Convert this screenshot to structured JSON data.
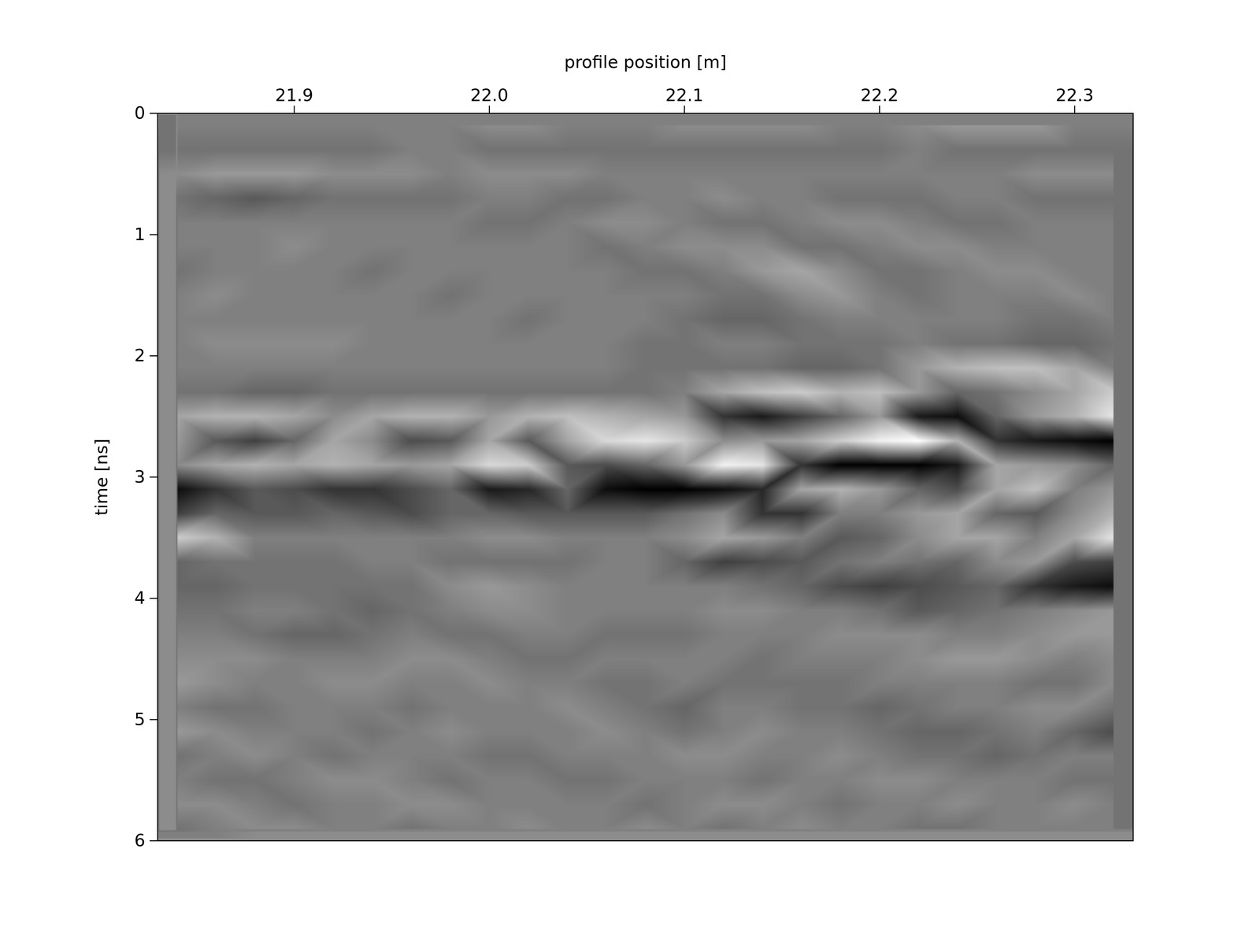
{
  "chart_data": {
    "type": "heatmap",
    "xlabel": "profile position [m]",
    "ylabel": "time [ns]",
    "xlim": [
      21.83,
      22.33
    ],
    "ylim": [
      0,
      6
    ],
    "xticks": [
      21.9,
      {
        "value": 22,
        "label": "22.0"
      },
      22.1,
      22.2,
      22.3
    ],
    "yticks": [
      0,
      1,
      2,
      3,
      4,
      5,
      6
    ],
    "colors": [
      "#000000",
      "#ffffff"
    ],
    "clim": [
      -1,
      1
    ],
    "x": [
      21.84,
      21.86,
      21.88,
      21.9,
      21.92,
      21.94,
      21.96,
      21.98,
      22.0,
      22.02,
      22.04,
      22.06,
      22.08,
      22.1,
      22.12,
      22.14,
      22.16,
      22.18,
      22.2,
      22.22,
      22.24,
      22.26,
      22.28,
      22.3,
      22.32
    ],
    "y": [
      0.1,
      0.3,
      0.5,
      0.7,
      0.9,
      1.1,
      1.3,
      1.5,
      1.7,
      1.9,
      2.1,
      2.3,
      2.5,
      2.7,
      2.9,
      3.1,
      3.3,
      3.5,
      3.7,
      3.9,
      4.1,
      4.3,
      4.5,
      4.7,
      4.9,
      5.1,
      5.3,
      5.5,
      5.7,
      5.9
    ],
    "cells": [
      [
        0,
        0,
        0,
        0,
        0,
        0,
        0,
        0,
        0.1,
        0.1,
        0,
        0,
        0,
        0.1,
        0.1,
        0.1,
        0.1,
        0,
        0,
        0.1,
        0.2,
        0.2,
        0.2,
        0,
        0
      ],
      [
        -0.1,
        -0.1,
        -0.1,
        -0.1,
        -0.1,
        -0.1,
        0,
        0,
        -0.1,
        -0.1,
        -0.1,
        -0.1,
        -0.1,
        -0.1,
        -0.1,
        -0.1,
        -0.1,
        -0.1,
        -0.1,
        0,
        -0.1,
        -0.1,
        -0.1,
        -0.1,
        -0.1
      ],
      [
        0.1,
        0.2,
        0.2,
        0.2,
        0.1,
        0.1,
        0.1,
        0,
        0.1,
        0.1,
        0.1,
        0,
        0,
        0,
        0,
        0,
        0,
        0,
        0,
        0,
        0,
        0,
        0.1,
        0.1,
        0.1
      ],
      [
        -0.1,
        -0.2,
        -0.3,
        -0.2,
        -0.1,
        -0.1,
        -0.1,
        -0.1,
        0,
        0,
        -0.1,
        -0.1,
        0,
        0,
        0.1,
        0,
        0,
        -0.1,
        -0.1,
        -0.1,
        0,
        0,
        -0.1,
        -0.1,
        -0.1
      ],
      [
        0,
        0,
        0,
        0,
        0,
        0,
        0,
        0,
        -0.1,
        -0.1,
        0,
        0.1,
        0.1,
        0,
        -0.1,
        -0.1,
        0,
        0.1,
        0.1,
        0,
        -0.1,
        -0.1,
        0,
        0,
        0
      ],
      [
        0,
        0,
        0,
        0.1,
        0,
        0,
        0,
        0,
        0,
        0,
        0,
        -0.1,
        0,
        0.1,
        0.1,
        0.1,
        -0.1,
        -0.1,
        0,
        0.1,
        0.1,
        0,
        0,
        0,
        0
      ],
      [
        -0.1,
        0,
        0,
        0,
        0,
        -0.1,
        0,
        0,
        0,
        0,
        0,
        0,
        -0.1,
        -0.1,
        0,
        0.2,
        0.3,
        0.1,
        -0.1,
        -0.1,
        0,
        0.1,
        0.1,
        0,
        0
      ],
      [
        0,
        0.1,
        0,
        0,
        0,
        0,
        0,
        -0.1,
        0,
        0,
        0,
        0,
        0,
        0,
        -0.1,
        -0.1,
        0.1,
        0.2,
        0,
        -0.1,
        0,
        0,
        0,
        0.1,
        0
      ],
      [
        0,
        0,
        0,
        0,
        0,
        0,
        0,
        0,
        0,
        -0.1,
        0,
        0,
        0,
        -0.1,
        -0.2,
        -0.2,
        -0.1,
        0,
        0,
        0,
        0,
        0,
        -0.1,
        -0.1,
        0
      ],
      [
        0,
        0.1,
        0.1,
        0.1,
        0.1,
        0,
        0,
        0,
        0,
        0,
        0,
        0,
        -0.1,
        -0.1,
        0,
        0,
        -0.1,
        -0.1,
        -0.1,
        0,
        -0.1,
        -0.1,
        -0.2,
        -0.2,
        -0.1
      ],
      [
        0,
        0,
        0,
        0,
        0,
        0,
        0,
        0,
        0,
        0,
        0,
        0,
        -0.1,
        -0.1,
        -0.1,
        -0.1,
        -0.2,
        -0.2,
        -0.1,
        0.2,
        0.4,
        0.5,
        0.5,
        0.3,
        0
      ],
      [
        -0.1,
        -0.1,
        -0.2,
        -0.2,
        -0.1,
        -0.1,
        -0.1,
        -0.1,
        -0.1,
        -0.1,
        -0.1,
        -0.1,
        -0.1,
        0,
        0.3,
        0.5,
        0.6,
        0.4,
        0.5,
        0.2,
        -0.2,
        -0.1,
        0.1,
        0.3,
        0.6
      ],
      [
        0.3,
        0.4,
        0.4,
        0.3,
        0.1,
        0.3,
        0.4,
        0.4,
        0.2,
        0.4,
        0.5,
        0.4,
        0.3,
        0.2,
        -0.6,
        -0.8,
        -0.5,
        -0.2,
        0.2,
        -0.8,
        -0.9,
        -0.2,
        0.2,
        0.4,
        0.8
      ],
      [
        0.2,
        -0.3,
        -0.5,
        -0.2,
        0.3,
        0.1,
        -0.4,
        -0.3,
        0.3,
        -0.3,
        0.3,
        0.7,
        0.8,
        0.6,
        0.1,
        0.2,
        0.3,
        0.6,
        0.9,
        1.0,
        0.4,
        -0.6,
        -0.8,
        -0.9,
        -1.0
      ],
      [
        0.1,
        0.3,
        0.4,
        0.3,
        0.4,
        0.3,
        0.2,
        0.3,
        0.7,
        0.6,
        -0.3,
        -0.4,
        -0.2,
        0.2,
        0.9,
        0.8,
        -0.6,
        -1.0,
        -1.0,
        -1.0,
        -0.8,
        0.3,
        0.2,
        0.1,
        -0.2
      ],
      [
        -0.9,
        -0.6,
        -0.3,
        -0.4,
        -0.6,
        -0.6,
        -0.4,
        -0.2,
        -0.8,
        -0.7,
        -0.2,
        -0.9,
        -1.0,
        -1.0,
        -0.9,
        -0.7,
        0.3,
        0.4,
        0.2,
        -0.2,
        -0.4,
        0.3,
        0.5,
        0,
        0.2
      ],
      [
        -0.5,
        -0.2,
        -0.3,
        -0.3,
        -0.2,
        -0.3,
        -0.4,
        -0.2,
        -0.2,
        -0.3,
        -0.3,
        -0.3,
        -0.3,
        -0.1,
        0.1,
        -0.6,
        -0.6,
        0,
        0,
        0.2,
        0.3,
        -0.2,
        -0.3,
        0.1,
        0.4
      ],
      [
        0.6,
        0.4,
        0,
        0,
        0,
        0,
        0,
        0,
        0.1,
        0.1,
        0,
        0,
        0,
        0.1,
        0.3,
        0.2,
        0,
        -0.3,
        -0.2,
        0.1,
        0.3,
        0.3,
        0,
        0.3,
        0.8
      ],
      [
        -0.2,
        -0.1,
        -0.1,
        -0.1,
        -0.1,
        0,
        0,
        -0.1,
        -0.1,
        -0.1,
        -0.1,
        0,
        0,
        -0.2,
        -0.5,
        -0.4,
        -0.3,
        -0.1,
        0,
        -0.1,
        -0.2,
        0.1,
        0.2,
        -0.4,
        -0.5
      ],
      [
        -0.2,
        -0.2,
        -0.1,
        -0.1,
        -0.1,
        -0.1,
        -0.1,
        0.1,
        0.2,
        0.1,
        0,
        0,
        0,
        0,
        0,
        -0.1,
        -0.2,
        -0.4,
        -0.5,
        -0.4,
        -0.3,
        -0.2,
        -0.6,
        -0.8,
        -0.9
      ],
      [
        -0.1,
        -0.1,
        0,
        0,
        -0.1,
        -0.2,
        -0.1,
        0,
        0.1,
        0.1,
        0,
        0,
        0,
        0,
        0.1,
        0.1,
        0,
        0,
        -0.1,
        -0.3,
        -0.2,
        -0.1,
        0,
        0.1,
        0.2
      ],
      [
        0,
        0,
        -0.1,
        -0.2,
        -0.2,
        -0.1,
        0,
        -0.1,
        -0.1,
        0,
        0,
        -0.1,
        -0.1,
        -0.1,
        0,
        0,
        0,
        0.1,
        0.1,
        0.1,
        0,
        0,
        0.1,
        0.2,
        0.2
      ],
      [
        0.1,
        0.1,
        0.1,
        0,
        0,
        0,
        0.1,
        0.1,
        0,
        -0.1,
        -0.1,
        0,
        0,
        0,
        0,
        -0.1,
        0,
        0,
        0,
        0.1,
        0.2,
        0.2,
        0.1,
        0,
        0.1
      ],
      [
        0.2,
        0.1,
        0,
        0,
        0.1,
        0.1,
        0,
        0,
        0.1,
        0,
        0,
        -0.1,
        -0.1,
        0,
        -0.1,
        -0.1,
        -0.1,
        -0.1,
        0,
        0,
        0,
        0,
        -0.1,
        -0.1,
        0.1
      ],
      [
        0,
        -0.1,
        -0.1,
        0,
        0,
        0,
        -0.1,
        0,
        0,
        0,
        0.1,
        0,
        -0.1,
        -0.2,
        0,
        0,
        -0.1,
        -0.1,
        -0.2,
        -0.1,
        0,
        0,
        0.1,
        0.1,
        -0.1
      ],
      [
        0.2,
        0.1,
        0,
        0,
        0,
        -0.1,
        0,
        0.1,
        0,
        0,
        0,
        0.1,
        0,
        -0.1,
        0,
        0.1,
        0,
        0,
        -0.1,
        -0.2,
        -0.2,
        -0.1,
        0,
        -0.2,
        -0.4
      ],
      [
        -0.1,
        0,
        0.1,
        0,
        -0.1,
        0,
        0,
        0,
        -0.1,
        -0.1,
        0,
        0,
        0,
        0.1,
        0.1,
        0,
        0,
        0.1,
        0,
        -0.1,
        -0.1,
        -0.2,
        -0.1,
        0,
        0
      ],
      [
        0,
        -0.1,
        -0.1,
        0,
        0.1,
        0.1,
        0,
        -0.1,
        0,
        0,
        -0.1,
        -0.1,
        0,
        0,
        0,
        -0.1,
        0,
        0,
        0.1,
        0.1,
        0,
        0,
        0,
        -0.1,
        -0.1
      ],
      [
        0.1,
        0.1,
        0,
        -0.1,
        0,
        0,
        0.1,
        0.1,
        0,
        0,
        0,
        0,
        -0.1,
        0,
        0.1,
        0.1,
        0,
        -0.1,
        0,
        0,
        0.1,
        0,
        0,
        0.1,
        0
      ],
      [
        -0.1,
        0,
        0.1,
        0.1,
        0,
        0,
        -0.1,
        0,
        0,
        0.1,
        0,
        0,
        0.1,
        0,
        -0.1,
        0,
        0.1,
        0,
        0,
        -0.1,
        -0.1,
        0,
        0,
        0,
        0
      ]
    ]
  }
}
